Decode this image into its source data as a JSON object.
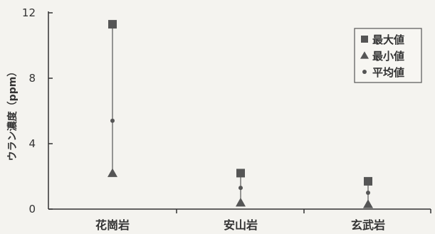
{
  "chart_data": {
    "type": "scatter",
    "title": "",
    "xlabel": "",
    "ylabel": "ウラン濃度（ppm）",
    "categories": [
      "花崗岩",
      "安山岩",
      "玄武岩"
    ],
    "ylim": [
      0,
      12
    ],
    "yticks": [
      0,
      4,
      8,
      12
    ],
    "grid": false,
    "legend_position": "top-right",
    "series": [
      {
        "name": "最大値",
        "marker": "square",
        "values": [
          11.3,
          2.2,
          1.7
        ]
      },
      {
        "name": "最小値",
        "marker": "triangle",
        "values": [
          2.2,
          0.4,
          0.3
        ]
      },
      {
        "name": "平均値",
        "marker": "circle",
        "values": [
          5.4,
          1.3,
          1.0
        ]
      }
    ],
    "colors": {
      "marker": "#555555",
      "axis": "#333333",
      "background": "#f4f3ef"
    }
  }
}
